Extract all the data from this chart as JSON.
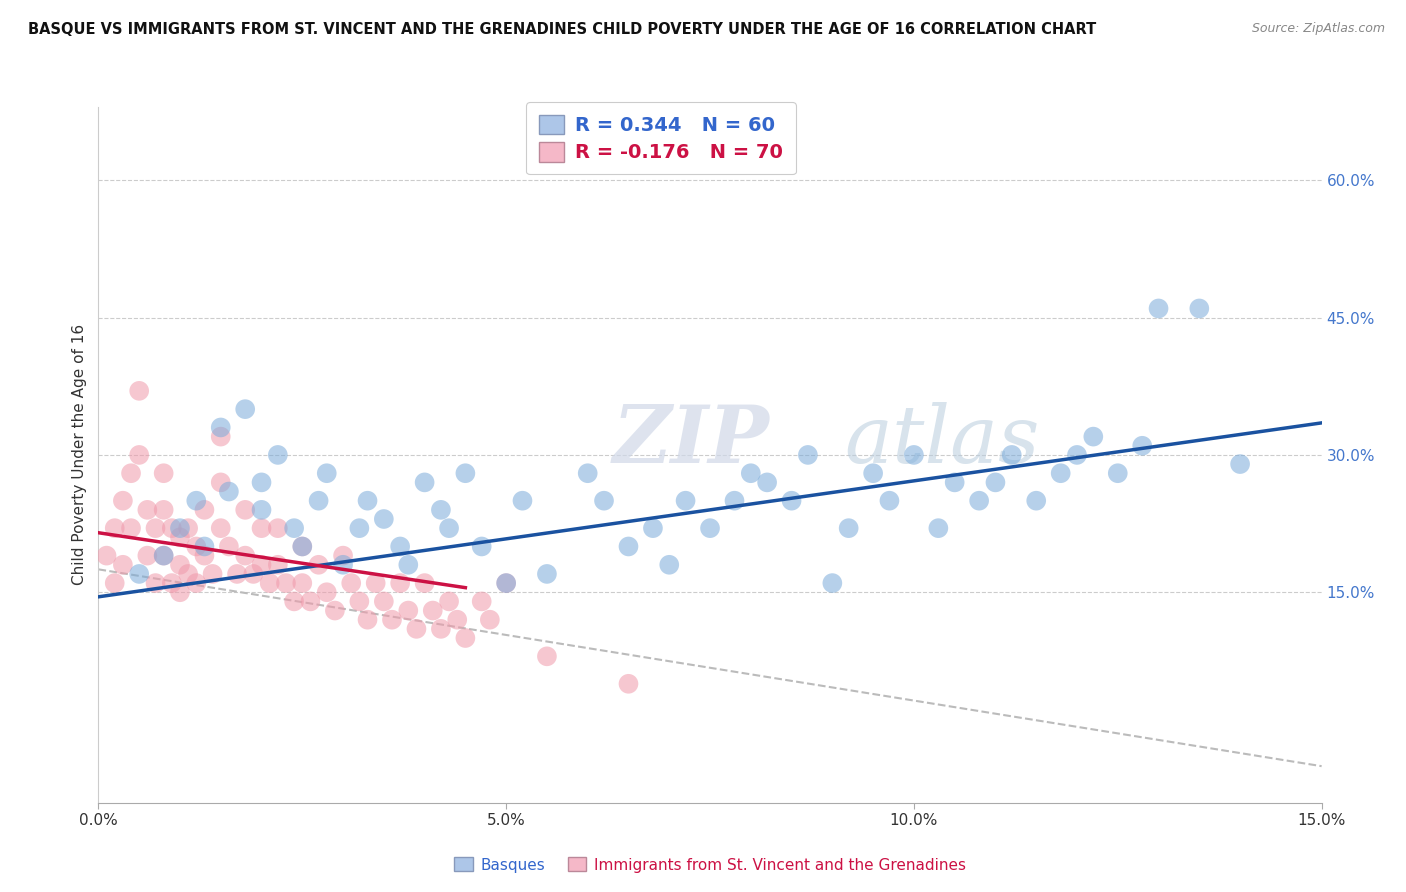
{
  "title": "BASQUE VS IMMIGRANTS FROM ST. VINCENT AND THE GRENADINES CHILD POVERTY UNDER THE AGE OF 16 CORRELATION CHART",
  "source": "Source: ZipAtlas.com",
  "ylabel": "Child Poverty Under the Age of 16",
  "xlim": [
    0.0,
    0.15
  ],
  "ylim": [
    -0.08,
    0.68
  ],
  "xticks": [
    0.0,
    0.05,
    0.1,
    0.15
  ],
  "xticklabels": [
    "0.0%",
    "5.0%",
    "10.0%",
    "15.0%"
  ],
  "yticks_right": [
    0.6,
    0.45,
    0.3,
    0.15
  ],
  "yticklabels_right": [
    "60.0%",
    "45.0%",
    "30.0%",
    "15.0%"
  ],
  "legend_color1": "#adc6e8",
  "legend_color2": "#f5b8c8",
  "blue_color": "#7aabda",
  "pink_color": "#f099aa",
  "blue_line_color": "#1a52a0",
  "pink_line_color": "#cc1144",
  "gray_line_color": "#bbbbbb",
  "watermark": "ZIPatlas",
  "legend_label1": "Basques",
  "legend_label2": "Immigrants from St. Vincent and the Grenadines",
  "blue_trend": [
    0.0,
    0.145,
    0.15,
    0.335
  ],
  "pink_trend": [
    0.0,
    0.215,
    0.045,
    0.155
  ],
  "gray_trend": [
    0.0,
    0.175,
    0.15,
    -0.04
  ],
  "blue_scatter_x": [
    0.005,
    0.008,
    0.01,
    0.012,
    0.013,
    0.015,
    0.016,
    0.018,
    0.02,
    0.02,
    0.022,
    0.024,
    0.025,
    0.027,
    0.028,
    0.03,
    0.032,
    0.033,
    0.035,
    0.037,
    0.038,
    0.04,
    0.042,
    0.043,
    0.045,
    0.047,
    0.05,
    0.052,
    0.055,
    0.06,
    0.062,
    0.065,
    0.068,
    0.07,
    0.072,
    0.075,
    0.078,
    0.08,
    0.082,
    0.085,
    0.087,
    0.09,
    0.092,
    0.095,
    0.097,
    0.1,
    0.103,
    0.105,
    0.108,
    0.11,
    0.112,
    0.115,
    0.118,
    0.12,
    0.122,
    0.125,
    0.128,
    0.13,
    0.135,
    0.14
  ],
  "blue_scatter_y": [
    0.17,
    0.19,
    0.22,
    0.25,
    0.2,
    0.33,
    0.26,
    0.35,
    0.24,
    0.27,
    0.3,
    0.22,
    0.2,
    0.25,
    0.28,
    0.18,
    0.22,
    0.25,
    0.23,
    0.2,
    0.18,
    0.27,
    0.24,
    0.22,
    0.28,
    0.2,
    0.16,
    0.25,
    0.17,
    0.28,
    0.25,
    0.2,
    0.22,
    0.18,
    0.25,
    0.22,
    0.25,
    0.28,
    0.27,
    0.25,
    0.3,
    0.16,
    0.22,
    0.28,
    0.25,
    0.3,
    0.22,
    0.27,
    0.25,
    0.27,
    0.3,
    0.25,
    0.28,
    0.3,
    0.32,
    0.28,
    0.31,
    0.46,
    0.46,
    0.29
  ],
  "pink_scatter_x": [
    0.001,
    0.002,
    0.002,
    0.003,
    0.003,
    0.004,
    0.004,
    0.005,
    0.005,
    0.006,
    0.006,
    0.007,
    0.007,
    0.008,
    0.008,
    0.008,
    0.009,
    0.009,
    0.01,
    0.01,
    0.01,
    0.011,
    0.011,
    0.012,
    0.012,
    0.013,
    0.013,
    0.014,
    0.015,
    0.015,
    0.015,
    0.016,
    0.017,
    0.018,
    0.018,
    0.019,
    0.02,
    0.02,
    0.021,
    0.022,
    0.022,
    0.023,
    0.024,
    0.025,
    0.025,
    0.026,
    0.027,
    0.028,
    0.029,
    0.03,
    0.031,
    0.032,
    0.033,
    0.034,
    0.035,
    0.036,
    0.037,
    0.038,
    0.039,
    0.04,
    0.041,
    0.042,
    0.043,
    0.044,
    0.045,
    0.047,
    0.048,
    0.05,
    0.055,
    0.065
  ],
  "pink_scatter_y": [
    0.19,
    0.22,
    0.16,
    0.25,
    0.18,
    0.28,
    0.22,
    0.37,
    0.3,
    0.24,
    0.19,
    0.22,
    0.16,
    0.28,
    0.24,
    0.19,
    0.22,
    0.16,
    0.21,
    0.18,
    0.15,
    0.22,
    0.17,
    0.2,
    0.16,
    0.24,
    0.19,
    0.17,
    0.32,
    0.27,
    0.22,
    0.2,
    0.17,
    0.24,
    0.19,
    0.17,
    0.22,
    0.18,
    0.16,
    0.22,
    0.18,
    0.16,
    0.14,
    0.2,
    0.16,
    0.14,
    0.18,
    0.15,
    0.13,
    0.19,
    0.16,
    0.14,
    0.12,
    0.16,
    0.14,
    0.12,
    0.16,
    0.13,
    0.11,
    0.16,
    0.13,
    0.11,
    0.14,
    0.12,
    0.1,
    0.14,
    0.12,
    0.16,
    0.08,
    0.05
  ]
}
